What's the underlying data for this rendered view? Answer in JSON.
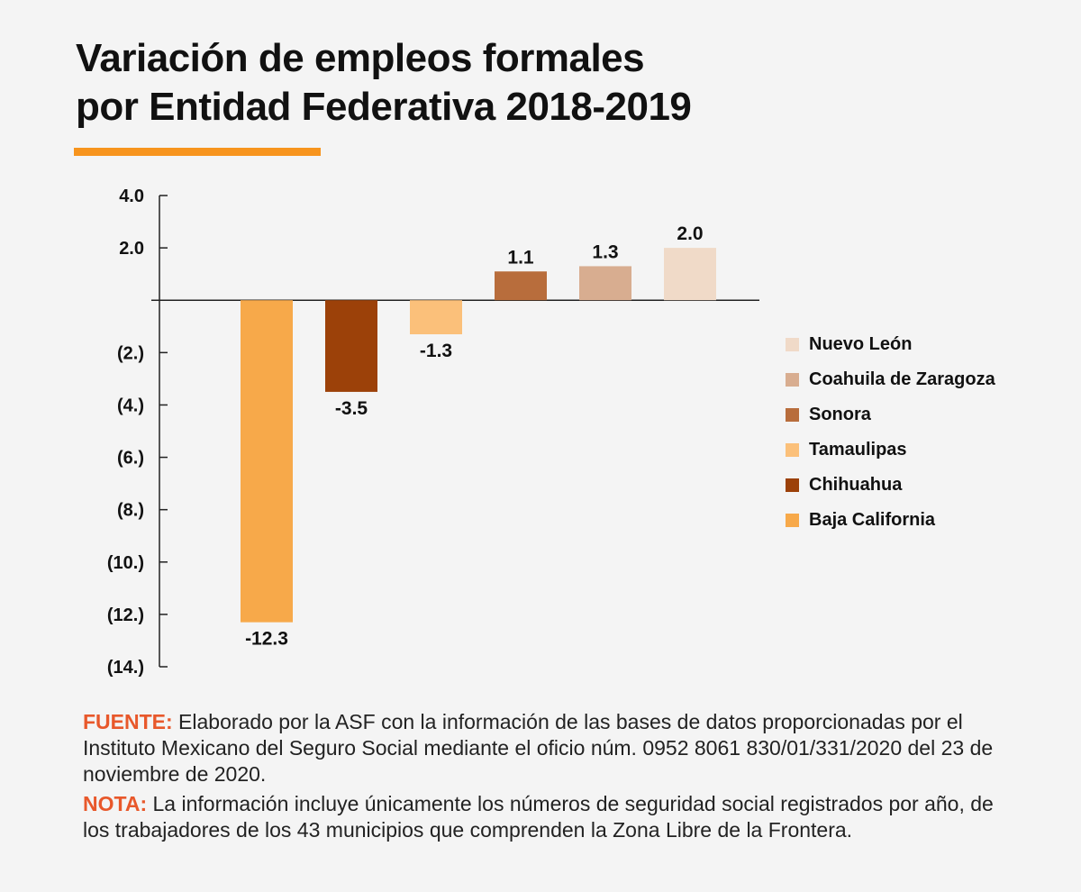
{
  "title_line1": "Variación de empleos formales",
  "title_line2": "por Entidad Federativa 2018-2019",
  "colors": {
    "accent": "#f7941d",
    "note_key": "#e8582b",
    "axis": "#222222"
  },
  "chart_data": {
    "type": "bar",
    "title": "Variación de empleos formales por Entidad Federativa 2018-2019",
    "xlabel": "",
    "ylabel": "",
    "ylim": [
      -14,
      4
    ],
    "yticks": [
      4,
      2,
      -2,
      -4,
      -6,
      -8,
      -10,
      -12,
      -14
    ],
    "ytick_labels": [
      "4.0",
      "2.0",
      "(2.)",
      "(4.)",
      "(6.)",
      "(8.)",
      "(10.)",
      "(12.)",
      "(14.)"
    ],
    "grid": false,
    "legend_position": "right",
    "series": [
      {
        "name": "Baja California",
        "value": -12.3,
        "label": "-12.3",
        "color": "#f7a94a"
      },
      {
        "name": "Chihuahua",
        "value": -3.5,
        "label": "-3.5",
        "color": "#9c4109"
      },
      {
        "name": "Tamaulipas",
        "value": -1.3,
        "label": "-1.3",
        "color": "#fbc07a"
      },
      {
        "name": "Sonora",
        "value": 1.1,
        "label": "1.1",
        "color": "#b86d3c"
      },
      {
        "name": "Coahuila de Zaragoza",
        "value": 1.3,
        "label": "1.3",
        "color": "#d8ad90"
      },
      {
        "name": "Nuevo León",
        "value": 2.0,
        "label": "2.0",
        "color": "#f0dac8"
      }
    ],
    "legend_order": [
      "Nuevo León",
      "Coahuila de Zaragoza",
      "Sonora",
      "Tamaulipas",
      "Chihuahua",
      "Baja California"
    ]
  },
  "legend": [
    {
      "label": "Nuevo León",
      "color": "#f0dac8"
    },
    {
      "label": "Coahuila de Zaragoza",
      "color": "#d8ad90"
    },
    {
      "label": "Sonora",
      "color": "#b86d3c"
    },
    {
      "label": "Tamaulipas",
      "color": "#fbc07a"
    },
    {
      "label": "Chihuahua",
      "color": "#9c4109"
    },
    {
      "label": "Baja California",
      "color": "#f7a94a"
    }
  ],
  "fuente": {
    "key": "FUENTE:",
    "text": " Elaborado por la ASF con la información de las bases de datos proporcionadas por el Instituto Mexicano del Seguro Social mediante el oficio núm. 0952 8061 830/01/331/2020 del 23 de noviembre de 2020."
  },
  "nota": {
    "key": "NOTA:",
    "text": " La información incluye únicamente los números de seguridad social registrados por año, de los trabajadores de los 43 municipios que comprenden la Zona Libre de la Frontera."
  }
}
